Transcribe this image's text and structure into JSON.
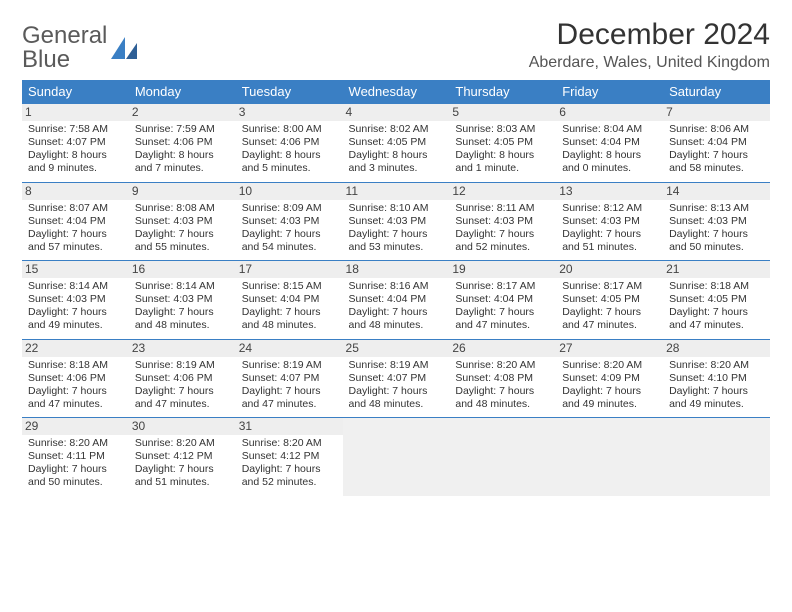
{
  "logo": {
    "line1": "General",
    "line2": "Blue"
  },
  "title": "December 2024",
  "location": "Aberdare, Wales, United Kingdom",
  "colors": {
    "header_bg": "#3a7fc4",
    "header_text": "#ffffff",
    "row_border": "#3a7fc4",
    "daynum_bg": "#eeeeee",
    "empty_bg": "#f0f0f0",
    "text": "#333333"
  },
  "weekdays": [
    "Sunday",
    "Monday",
    "Tuesday",
    "Wednesday",
    "Thursday",
    "Friday",
    "Saturday"
  ],
  "days": [
    {
      "n": "1",
      "sunrise": "Sunrise: 7:58 AM",
      "sunset": "Sunset: 4:07 PM",
      "daylight": "Daylight: 8 hours and 9 minutes."
    },
    {
      "n": "2",
      "sunrise": "Sunrise: 7:59 AM",
      "sunset": "Sunset: 4:06 PM",
      "daylight": "Daylight: 8 hours and 7 minutes."
    },
    {
      "n": "3",
      "sunrise": "Sunrise: 8:00 AM",
      "sunset": "Sunset: 4:06 PM",
      "daylight": "Daylight: 8 hours and 5 minutes."
    },
    {
      "n": "4",
      "sunrise": "Sunrise: 8:02 AM",
      "sunset": "Sunset: 4:05 PM",
      "daylight": "Daylight: 8 hours and 3 minutes."
    },
    {
      "n": "5",
      "sunrise": "Sunrise: 8:03 AM",
      "sunset": "Sunset: 4:05 PM",
      "daylight": "Daylight: 8 hours and 1 minute."
    },
    {
      "n": "6",
      "sunrise": "Sunrise: 8:04 AM",
      "sunset": "Sunset: 4:04 PM",
      "daylight": "Daylight: 8 hours and 0 minutes."
    },
    {
      "n": "7",
      "sunrise": "Sunrise: 8:06 AM",
      "sunset": "Sunset: 4:04 PM",
      "daylight": "Daylight: 7 hours and 58 minutes."
    },
    {
      "n": "8",
      "sunrise": "Sunrise: 8:07 AM",
      "sunset": "Sunset: 4:04 PM",
      "daylight": "Daylight: 7 hours and 57 minutes."
    },
    {
      "n": "9",
      "sunrise": "Sunrise: 8:08 AM",
      "sunset": "Sunset: 4:03 PM",
      "daylight": "Daylight: 7 hours and 55 minutes."
    },
    {
      "n": "10",
      "sunrise": "Sunrise: 8:09 AM",
      "sunset": "Sunset: 4:03 PM",
      "daylight": "Daylight: 7 hours and 54 minutes."
    },
    {
      "n": "11",
      "sunrise": "Sunrise: 8:10 AM",
      "sunset": "Sunset: 4:03 PM",
      "daylight": "Daylight: 7 hours and 53 minutes."
    },
    {
      "n": "12",
      "sunrise": "Sunrise: 8:11 AM",
      "sunset": "Sunset: 4:03 PM",
      "daylight": "Daylight: 7 hours and 52 minutes."
    },
    {
      "n": "13",
      "sunrise": "Sunrise: 8:12 AM",
      "sunset": "Sunset: 4:03 PM",
      "daylight": "Daylight: 7 hours and 51 minutes."
    },
    {
      "n": "14",
      "sunrise": "Sunrise: 8:13 AM",
      "sunset": "Sunset: 4:03 PM",
      "daylight": "Daylight: 7 hours and 50 minutes."
    },
    {
      "n": "15",
      "sunrise": "Sunrise: 8:14 AM",
      "sunset": "Sunset: 4:03 PM",
      "daylight": "Daylight: 7 hours and 49 minutes."
    },
    {
      "n": "16",
      "sunrise": "Sunrise: 8:14 AM",
      "sunset": "Sunset: 4:03 PM",
      "daylight": "Daylight: 7 hours and 48 minutes."
    },
    {
      "n": "17",
      "sunrise": "Sunrise: 8:15 AM",
      "sunset": "Sunset: 4:04 PM",
      "daylight": "Daylight: 7 hours and 48 minutes."
    },
    {
      "n": "18",
      "sunrise": "Sunrise: 8:16 AM",
      "sunset": "Sunset: 4:04 PM",
      "daylight": "Daylight: 7 hours and 48 minutes."
    },
    {
      "n": "19",
      "sunrise": "Sunrise: 8:17 AM",
      "sunset": "Sunset: 4:04 PM",
      "daylight": "Daylight: 7 hours and 47 minutes."
    },
    {
      "n": "20",
      "sunrise": "Sunrise: 8:17 AM",
      "sunset": "Sunset: 4:05 PM",
      "daylight": "Daylight: 7 hours and 47 minutes."
    },
    {
      "n": "21",
      "sunrise": "Sunrise: 8:18 AM",
      "sunset": "Sunset: 4:05 PM",
      "daylight": "Daylight: 7 hours and 47 minutes."
    },
    {
      "n": "22",
      "sunrise": "Sunrise: 8:18 AM",
      "sunset": "Sunset: 4:06 PM",
      "daylight": "Daylight: 7 hours and 47 minutes."
    },
    {
      "n": "23",
      "sunrise": "Sunrise: 8:19 AM",
      "sunset": "Sunset: 4:06 PM",
      "daylight": "Daylight: 7 hours and 47 minutes."
    },
    {
      "n": "24",
      "sunrise": "Sunrise: 8:19 AM",
      "sunset": "Sunset: 4:07 PM",
      "daylight": "Daylight: 7 hours and 47 minutes."
    },
    {
      "n": "25",
      "sunrise": "Sunrise: 8:19 AM",
      "sunset": "Sunset: 4:07 PM",
      "daylight": "Daylight: 7 hours and 48 minutes."
    },
    {
      "n": "26",
      "sunrise": "Sunrise: 8:20 AM",
      "sunset": "Sunset: 4:08 PM",
      "daylight": "Daylight: 7 hours and 48 minutes."
    },
    {
      "n": "27",
      "sunrise": "Sunrise: 8:20 AM",
      "sunset": "Sunset: 4:09 PM",
      "daylight": "Daylight: 7 hours and 49 minutes."
    },
    {
      "n": "28",
      "sunrise": "Sunrise: 8:20 AM",
      "sunset": "Sunset: 4:10 PM",
      "daylight": "Daylight: 7 hours and 49 minutes."
    },
    {
      "n": "29",
      "sunrise": "Sunrise: 8:20 AM",
      "sunset": "Sunset: 4:11 PM",
      "daylight": "Daylight: 7 hours and 50 minutes."
    },
    {
      "n": "30",
      "sunrise": "Sunrise: 8:20 AM",
      "sunset": "Sunset: 4:12 PM",
      "daylight": "Daylight: 7 hours and 51 minutes."
    },
    {
      "n": "31",
      "sunrise": "Sunrise: 8:20 AM",
      "sunset": "Sunset: 4:12 PM",
      "daylight": "Daylight: 7 hours and 52 minutes."
    }
  ]
}
